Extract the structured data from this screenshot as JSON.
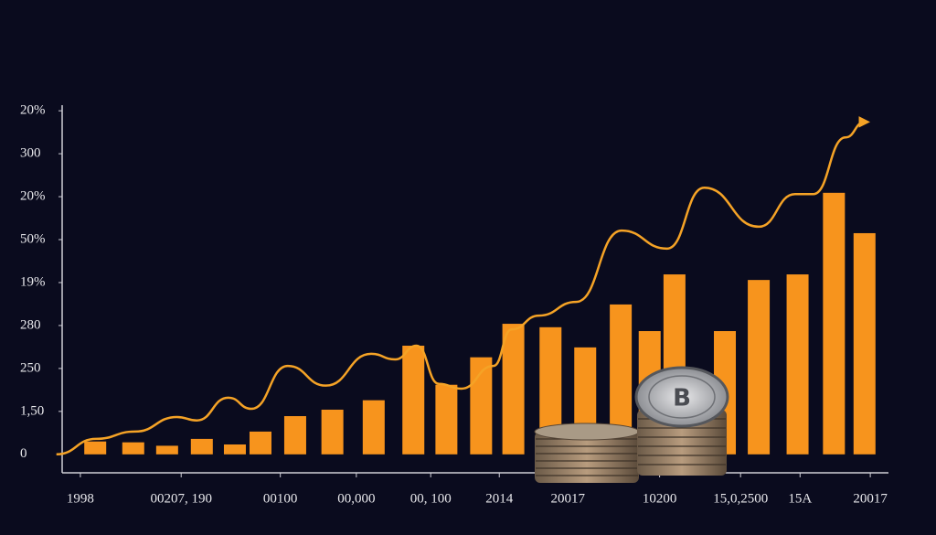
{
  "chart_data": {
    "type": "bar",
    "xlim": [
      -1,
      100
    ],
    "ylim": [
      -0.43,
      8.45
    ],
    "yticks": [
      {
        "value": 0,
        "label": "0"
      },
      {
        "value": 1,
        "label": "1,50"
      },
      {
        "value": 2,
        "label": "250"
      },
      {
        "value": 3,
        "label": "280"
      },
      {
        "value": 4,
        "label": "19%"
      },
      {
        "value": 5,
        "label": "50%"
      },
      {
        "value": 6,
        "label": "20%"
      },
      {
        "value": 7,
        "label": "300"
      },
      {
        "value": 8,
        "label": "20%"
      }
    ],
    "xticks": [
      {
        "value": 2.2,
        "label": "1998"
      },
      {
        "value": 14.4,
        "label": "00207, 190"
      },
      {
        "value": 26.4,
        "label": "00100"
      },
      {
        "value": 35.6,
        "label": "00,000"
      },
      {
        "value": 44.6,
        "label": "00, 100"
      },
      {
        "value": 52.9,
        "label": "2014"
      },
      {
        "value": 61.2,
        "label": "20017"
      },
      {
        "value": 72.3,
        "label": "10200"
      },
      {
        "value": 82.1,
        "label": "15,0,2500"
      },
      {
        "value": 89.3,
        "label": "15A"
      },
      {
        "value": 97.8,
        "label": "20017"
      }
    ],
    "series": [
      {
        "type": "bar",
        "color": "#f7941d",
        "x": [
          4.0,
          8.6,
          12.7,
          16.9,
          20.9,
          24.0,
          28.2,
          32.7,
          37.7,
          42.5,
          46.5,
          50.7,
          54.6,
          59.1,
          63.3,
          67.6,
          71.1,
          74.1,
          80.2,
          84.3,
          89.0,
          93.4,
          97.1
        ],
        "values": [
          0.3,
          0.28,
          0.2,
          0.36,
          0.23,
          0.53,
          0.89,
          1.04,
          1.26,
          2.53,
          1.62,
          2.26,
          3.04,
          2.96,
          2.49,
          3.49,
          2.87,
          4.19,
          2.87,
          4.06,
          4.19,
          6.09,
          5.15
        ]
      },
      {
        "type": "line",
        "color": "#f5a326",
        "x": [
          -0.7,
          4.1,
          8.8,
          13.9,
          16.3,
          20.1,
          22.9,
          27.3,
          31.9,
          37.4,
          40.3,
          42.9,
          45.6,
          48.3,
          52.2,
          54.4,
          57.7,
          62.2,
          67.7,
          73.2,
          77.7,
          84.3,
          88.7,
          90.9,
          94.8,
          97.1
        ],
        "values": [
          0,
          0.36,
          0.53,
          0.87,
          0.79,
          1.32,
          1.06,
          2.06,
          1.6,
          2.34,
          2.21,
          2.53,
          1.64,
          1.53,
          2.06,
          2.91,
          3.23,
          3.55,
          5.21,
          4.79,
          6.21,
          5.3,
          6.06,
          6.06,
          7.38,
          7.74
        ]
      }
    ]
  }
}
